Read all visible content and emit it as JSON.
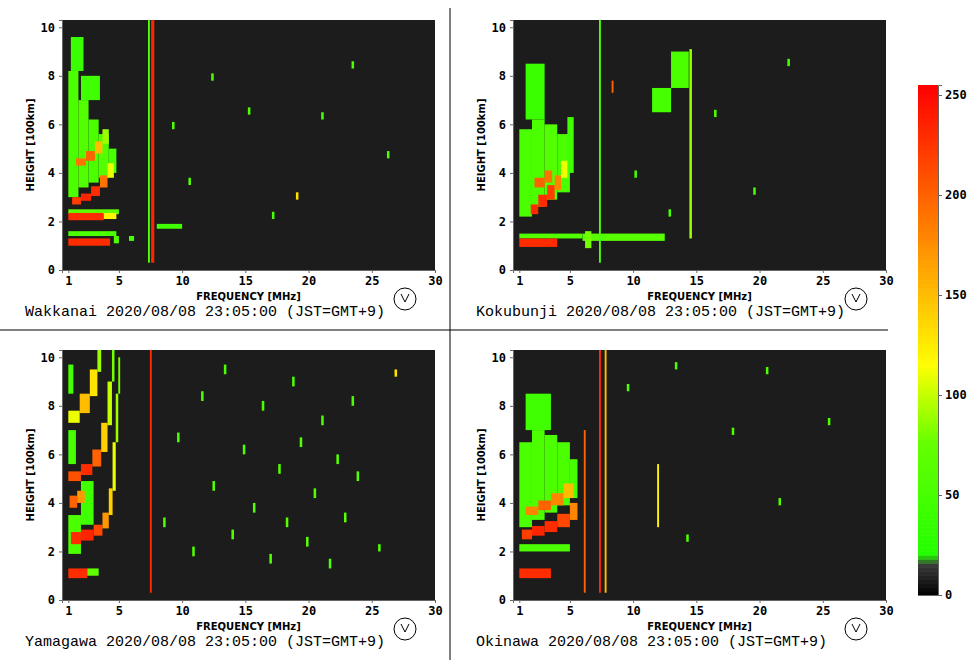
{
  "chart_data": [
    {
      "type": "heatmap",
      "title": "Wakkanai 2020/08/08 23:05:00 (JST=GMT+9)",
      "x_label": "FREQUENCY [MHz]",
      "y_label": "HEIGHT [100km]",
      "xlim": [
        0.5,
        30
      ],
      "ylim": [
        0,
        10.3
      ],
      "xticks": [
        1,
        5,
        10,
        15,
        20,
        25,
        30
      ],
      "yticks": [
        0,
        2,
        4,
        6,
        8,
        10
      ],
      "cells": [
        [
          1.0,
          1.8,
          3.0,
          8.2,
          55
        ],
        [
          1.8,
          2.6,
          3.4,
          7.0,
          60
        ],
        [
          2.6,
          3.4,
          3.6,
          6.2,
          55
        ],
        [
          3.4,
          4.2,
          3.8,
          5.6,
          60
        ],
        [
          4.2,
          4.8,
          4.0,
          5.0,
          50
        ],
        [
          1.2,
          2.2,
          8.2,
          9.6,
          40
        ],
        [
          2.0,
          3.5,
          7.0,
          8.0,
          45
        ],
        [
          1.0,
          4.8,
          1.4,
          1.6,
          55
        ],
        [
          1.0,
          5.0,
          2.3,
          2.5,
          70
        ],
        [
          4.6,
          5.0,
          1.1,
          1.4,
          60
        ],
        [
          5.8,
          6.2,
          1.2,
          1.4,
          50
        ],
        [
          8.0,
          10.0,
          1.7,
          1.9,
          45
        ],
        [
          7.3,
          7.45,
          0.3,
          10.3,
          60
        ],
        [
          1.0,
          4.3,
          1.0,
          1.3,
          230
        ],
        [
          1.0,
          3.8,
          2.05,
          2.35,
          230
        ],
        [
          3.8,
          4.8,
          2.1,
          2.35,
          120
        ],
        [
          1.3,
          2.0,
          2.7,
          3.0,
          220
        ],
        [
          2.0,
          2.8,
          2.85,
          3.15,
          235
        ],
        [
          2.8,
          3.5,
          3.05,
          3.45,
          230
        ],
        [
          3.5,
          4.1,
          3.4,
          3.9,
          190
        ],
        [
          4.1,
          4.6,
          3.8,
          4.4,
          110
        ],
        [
          1.6,
          2.4,
          4.3,
          4.6,
          190
        ],
        [
          2.4,
          3.1,
          4.5,
          4.9,
          200
        ],
        [
          3.1,
          3.7,
          4.8,
          5.3,
          150
        ],
        [
          3.7,
          4.2,
          5.2,
          5.8,
          90
        ],
        [
          7.55,
          7.8,
          0.3,
          10.3,
          235
        ],
        [
          10.5,
          10.7,
          3.5,
          3.8,
          60
        ],
        [
          15.2,
          15.4,
          6.4,
          6.7,
          55
        ],
        [
          19.0,
          19.2,
          2.9,
          3.2,
          130
        ],
        [
          21.0,
          21.2,
          6.2,
          6.5,
          50
        ],
        [
          23.4,
          23.6,
          8.3,
          8.6,
          55
        ],
        [
          12.3,
          12.5,
          7.8,
          8.1,
          55
        ],
        [
          17.1,
          17.3,
          2.1,
          2.4,
          50
        ],
        [
          26.2,
          26.4,
          4.6,
          4.9,
          50
        ],
        [
          9.2,
          9.4,
          5.8,
          6.1,
          55
        ]
      ]
    },
    {
      "type": "heatmap",
      "title": "Kokubunji 2020/08/08 23:05:00 (JST=GMT+9)",
      "x_label": "FREQUENCY [MHz]",
      "y_label": "HEIGHT [100km]",
      "xlim": [
        0.5,
        30
      ],
      "ylim": [
        0,
        10.3
      ],
      "xticks": [
        1,
        5,
        10,
        15,
        20,
        25,
        30
      ],
      "yticks": [
        0,
        2,
        4,
        6,
        8,
        10
      ],
      "cells": [
        [
          1.0,
          2.0,
          2.2,
          5.8,
          55
        ],
        [
          2.0,
          3.0,
          2.6,
          6.2,
          55
        ],
        [
          3.0,
          4.0,
          2.9,
          6.0,
          60
        ],
        [
          4.0,
          5.0,
          3.2,
          5.6,
          55
        ],
        [
          4.8,
          5.3,
          4.0,
          6.3,
          45
        ],
        [
          1.5,
          3.0,
          6.2,
          8.5,
          40
        ],
        [
          1.0,
          6.0,
          1.3,
          1.5,
          60
        ],
        [
          6.0,
          12.5,
          1.2,
          1.5,
          65
        ],
        [
          6.2,
          6.7,
          0.9,
          1.6,
          80
        ],
        [
          7.3,
          7.45,
          0.3,
          10.3,
          55
        ],
        [
          14.45,
          14.65,
          1.3,
          9.1,
          90
        ],
        [
          11.5,
          13.0,
          6.5,
          7.5,
          50
        ],
        [
          13.0,
          14.4,
          7.5,
          9.0,
          55
        ],
        [
          1.0,
          4.0,
          0.95,
          1.3,
          230
        ],
        [
          1.9,
          2.5,
          2.3,
          2.7,
          230
        ],
        [
          2.5,
          3.2,
          2.6,
          3.1,
          230
        ],
        [
          3.2,
          3.8,
          2.9,
          3.5,
          220
        ],
        [
          3.8,
          4.3,
          3.3,
          3.9,
          180
        ],
        [
          4.3,
          4.8,
          3.8,
          4.5,
          110
        ],
        [
          2.2,
          3.0,
          3.4,
          3.8,
          200
        ],
        [
          3.0,
          3.6,
          3.6,
          4.1,
          190
        ],
        [
          8.3,
          8.45,
          7.3,
          7.8,
          200
        ],
        [
          10.1,
          10.3,
          3.8,
          4.1,
          50
        ],
        [
          16.4,
          16.6,
          6.3,
          6.6,
          55
        ],
        [
          22.2,
          22.4,
          8.4,
          8.7,
          50
        ],
        [
          19.5,
          19.7,
          3.1,
          3.4,
          50
        ],
        [
          12.8,
          13.0,
          2.2,
          2.5,
          50
        ]
      ]
    },
    {
      "type": "heatmap",
      "title": "Yamagawa 2020/08/08 23:05:00 (JST=GMT+9)",
      "x_label": "FREQUENCY [MHz]",
      "y_label": "HEIGHT [100km]",
      "xlim": [
        0.5,
        30
      ],
      "ylim": [
        0,
        10.3
      ],
      "xticks": [
        1,
        5,
        10,
        15,
        20,
        25,
        30
      ],
      "yticks": [
        0,
        2,
        4,
        6,
        8,
        10
      ],
      "cells": [
        [
          1.0,
          2.0,
          1.9,
          3.5,
          55
        ],
        [
          1.0,
          1.6,
          5.6,
          7.0,
          50
        ],
        [
          1.0,
          1.4,
          8.5,
          9.7,
          50
        ],
        [
          2.0,
          3.0,
          3.1,
          4.9,
          45
        ],
        [
          1.0,
          2.5,
          0.9,
          1.3,
          230
        ],
        [
          2.5,
          3.4,
          1.0,
          1.3,
          70
        ],
        [
          1.2,
          2.0,
          2.3,
          2.8,
          230
        ],
        [
          2.0,
          3.0,
          2.45,
          2.9,
          235
        ],
        [
          3.0,
          3.7,
          2.65,
          3.1,
          215
        ],
        [
          3.7,
          4.2,
          2.95,
          3.6,
          170
        ],
        [
          4.2,
          4.5,
          3.5,
          4.6,
          140
        ],
        [
          4.5,
          4.75,
          4.5,
          6.5,
          110
        ],
        [
          4.75,
          4.95,
          6.5,
          8.5,
          90
        ],
        [
          4.95,
          5.1,
          8.5,
          10.0,
          80
        ],
        [
          1.1,
          1.7,
          3.8,
          4.3,
          200
        ],
        [
          1.7,
          2.3,
          4.0,
          4.5,
          170
        ],
        [
          1.0,
          2.0,
          4.9,
          5.3,
          210
        ],
        [
          2.0,
          2.9,
          5.15,
          5.6,
          230
        ],
        [
          2.9,
          3.6,
          5.5,
          6.2,
          200
        ],
        [
          3.6,
          4.1,
          6.1,
          7.3,
          140
        ],
        [
          4.1,
          4.45,
          7.2,
          9.0,
          100
        ],
        [
          4.45,
          4.65,
          9.0,
          10.3,
          80
        ],
        [
          1.0,
          1.9,
          7.3,
          7.8,
          110
        ],
        [
          1.9,
          2.7,
          7.7,
          8.5,
          150
        ],
        [
          2.7,
          3.3,
          8.4,
          9.5,
          130
        ],
        [
          3.3,
          3.6,
          9.4,
          10.3,
          90
        ],
        [
          7.45,
          7.6,
          0.3,
          10.3,
          230
        ],
        [
          8.5,
          8.7,
          3.0,
          3.4,
          55
        ],
        [
          9.6,
          9.8,
          6.5,
          6.9,
          55
        ],
        [
          10.8,
          11.0,
          1.8,
          2.2,
          60
        ],
        [
          11.5,
          11.7,
          8.2,
          8.6,
          55
        ],
        [
          12.4,
          12.6,
          4.5,
          4.9,
          60
        ],
        [
          13.3,
          13.5,
          9.3,
          9.7,
          55
        ],
        [
          13.9,
          14.1,
          2.5,
          2.9,
          60
        ],
        [
          14.8,
          15.0,
          6.0,
          6.4,
          55
        ],
        [
          15.6,
          15.8,
          3.6,
          4.0,
          60
        ],
        [
          16.3,
          16.5,
          7.8,
          8.2,
          55
        ],
        [
          16.9,
          17.1,
          1.5,
          1.9,
          60
        ],
        [
          17.6,
          17.8,
          5.2,
          5.6,
          60
        ],
        [
          18.2,
          18.4,
          3.0,
          3.4,
          65
        ],
        [
          18.7,
          18.9,
          8.8,
          9.2,
          55
        ],
        [
          19.3,
          19.5,
          6.3,
          6.7,
          60
        ],
        [
          19.8,
          20.0,
          2.2,
          2.6,
          65
        ],
        [
          20.4,
          20.6,
          4.2,
          4.6,
          60
        ],
        [
          21.0,
          21.2,
          7.2,
          7.6,
          55
        ],
        [
          21.6,
          21.8,
          1.3,
          1.7,
          60
        ],
        [
          22.2,
          22.4,
          5.6,
          6.0,
          60
        ],
        [
          22.8,
          23.0,
          3.2,
          3.6,
          65
        ],
        [
          23.4,
          23.6,
          8.0,
          8.4,
          55
        ],
        [
          23.8,
          24.0,
          4.9,
          5.3,
          60
        ],
        [
          26.8,
          27.0,
          9.2,
          9.5,
          130
        ],
        [
          25.5,
          25.7,
          2.0,
          2.3,
          60
        ]
      ]
    },
    {
      "type": "heatmap",
      "title": "Okinawa 2020/08/08 23:05:00 (JST=GMT+9)",
      "x_label": "FREQUENCY [MHz]",
      "y_label": "HEIGHT [100km]",
      "xlim": [
        0.5,
        30
      ],
      "ylim": [
        0,
        10.3
      ],
      "xticks": [
        1,
        5,
        10,
        15,
        20,
        25,
        30
      ],
      "yticks": [
        0,
        2,
        4,
        6,
        8,
        10
      ],
      "cells": [
        [
          1.0,
          2.0,
          3.0,
          6.5,
          55
        ],
        [
          2.0,
          3.0,
          3.3,
          7.0,
          55
        ],
        [
          3.0,
          4.0,
          3.6,
          6.8,
          55
        ],
        [
          4.0,
          5.0,
          3.9,
          6.5,
          55
        ],
        [
          5.0,
          5.6,
          4.2,
          5.8,
          50
        ],
        [
          1.5,
          3.5,
          7.0,
          8.5,
          45
        ],
        [
          1.0,
          5.0,
          2.0,
          2.3,
          55
        ],
        [
          1.0,
          3.5,
          0.9,
          1.3,
          230
        ],
        [
          1.2,
          2.0,
          2.5,
          2.9,
          220
        ],
        [
          2.0,
          3.0,
          2.65,
          3.05,
          235
        ],
        [
          3.0,
          4.0,
          2.8,
          3.25,
          230
        ],
        [
          4.0,
          5.0,
          3.0,
          3.55,
          215
        ],
        [
          5.0,
          5.6,
          3.3,
          4.0,
          180
        ],
        [
          1.5,
          2.5,
          3.5,
          3.85,
          180
        ],
        [
          2.5,
          3.5,
          3.7,
          4.1,
          200
        ],
        [
          3.5,
          4.5,
          3.9,
          4.4,
          180
        ],
        [
          4.5,
          5.3,
          4.2,
          4.8,
          150
        ],
        [
          6.1,
          6.25,
          0.3,
          7.0,
          200
        ],
        [
          7.3,
          7.45,
          0.3,
          10.3,
          230
        ],
        [
          7.75,
          7.9,
          0.3,
          10.3,
          150
        ],
        [
          11.9,
          12.05,
          3.0,
          5.6,
          120
        ],
        [
          9.5,
          9.7,
          8.6,
          8.9,
          55
        ],
        [
          14.2,
          14.4,
          2.4,
          2.7,
          55
        ],
        [
          17.8,
          18.0,
          6.8,
          7.1,
          55
        ],
        [
          21.5,
          21.7,
          3.9,
          4.2,
          55
        ],
        [
          25.4,
          25.6,
          7.2,
          7.5,
          55
        ],
        [
          13.3,
          13.5,
          9.5,
          9.8,
          55
        ],
        [
          20.5,
          20.7,
          9.3,
          9.6,
          55
        ]
      ]
    },
    {
      "type": "colorbar",
      "zlim": [
        0,
        255
      ],
      "zticks": [
        0,
        50,
        100,
        150,
        200,
        250
      ]
    }
  ]
}
